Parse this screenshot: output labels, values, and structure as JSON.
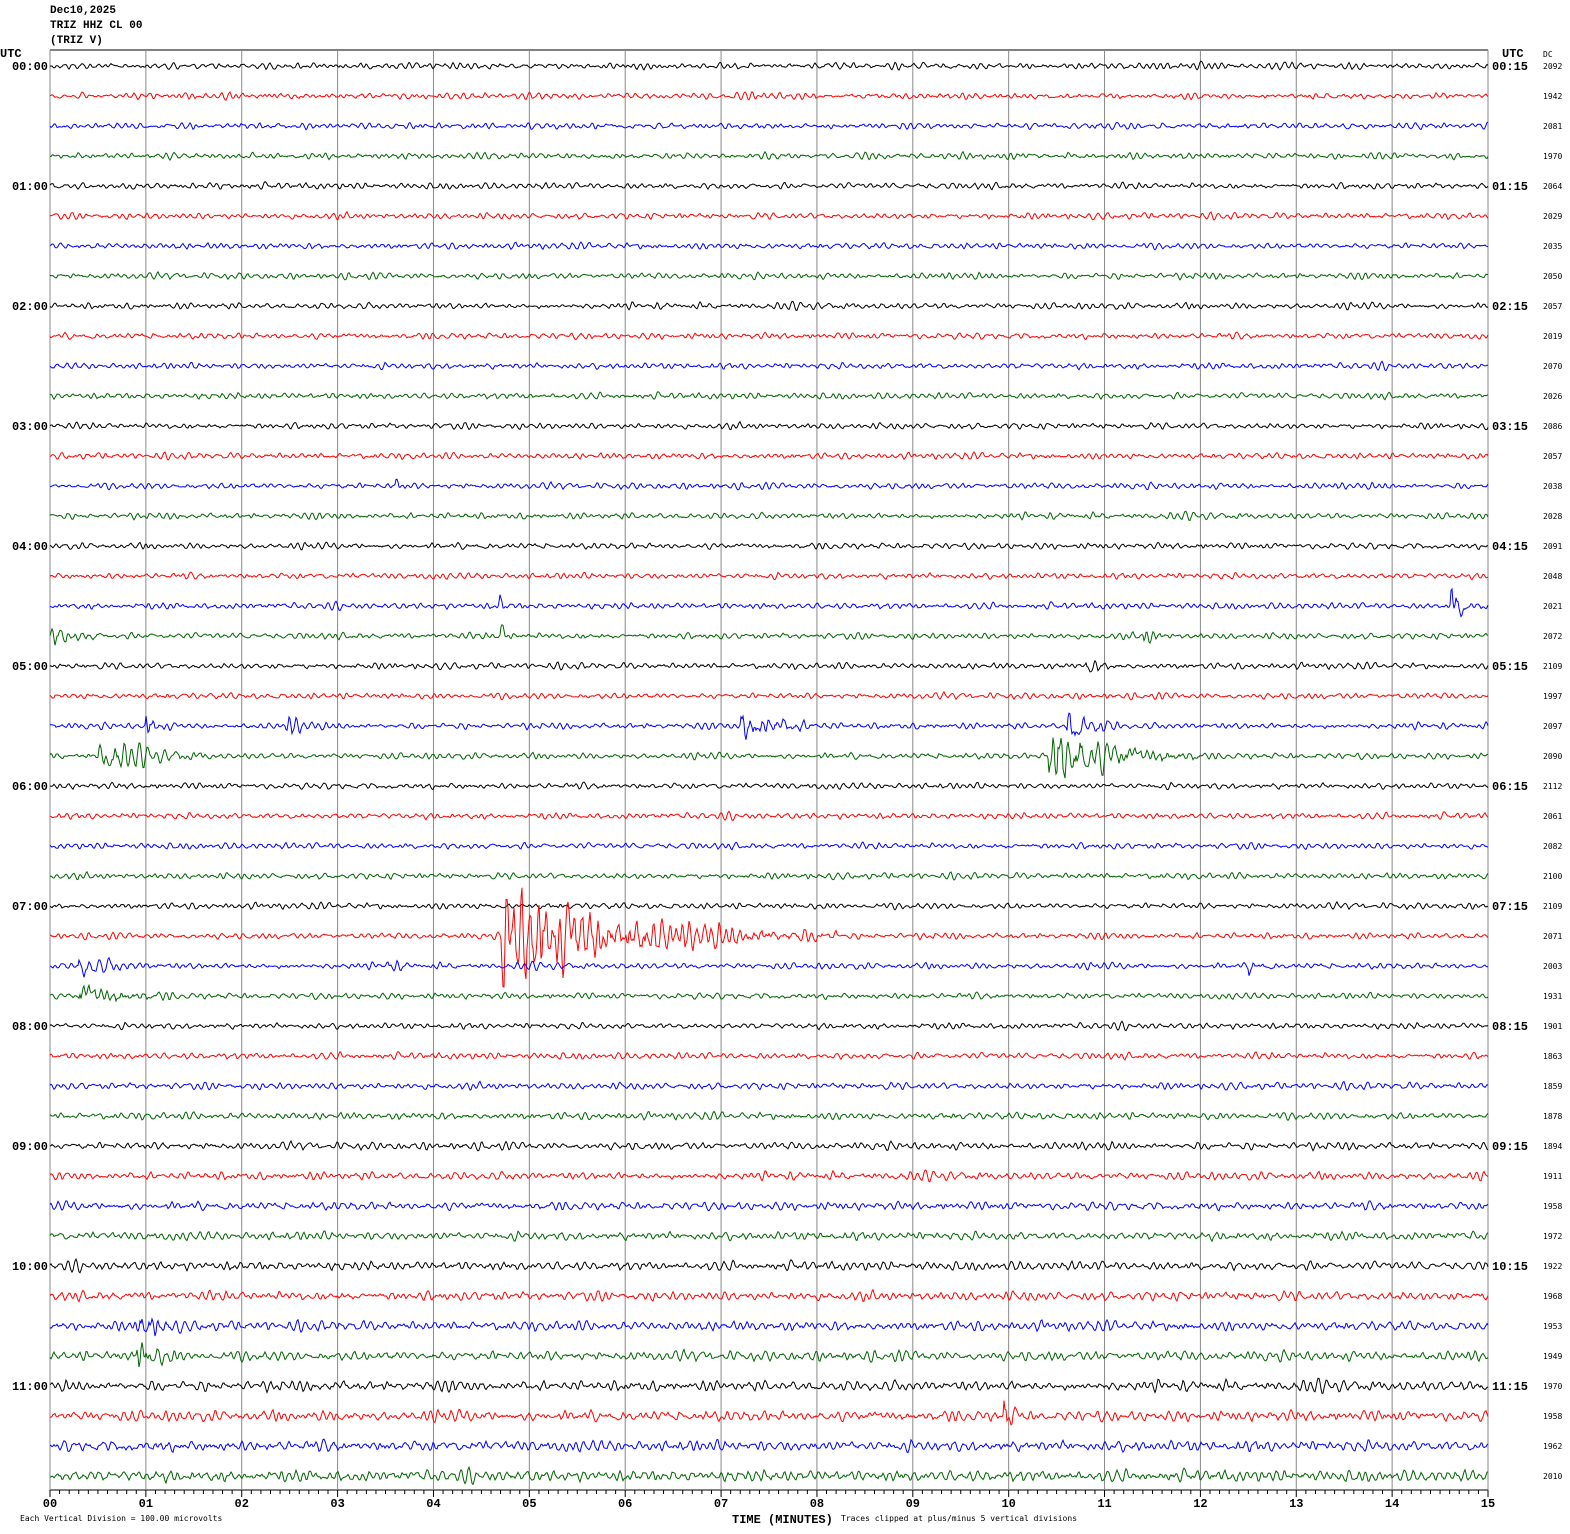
{
  "header": {
    "date": "Dec10,2025",
    "station": "TRIZ HHZ CL 00",
    "network": "(TRIZ V)"
  },
  "chart_data": {
    "type": "line",
    "subtype": "helicorder",
    "xlabel": "TIME (MINUTES)",
    "x_ticks": [
      "00",
      "01",
      "02",
      "03",
      "04",
      "05",
      "06",
      "07",
      "08",
      "09",
      "10",
      "11",
      "12",
      "13",
      "14",
      "15"
    ],
    "xlim": [
      0,
      15
    ],
    "grid": "vertical lines each minute",
    "left_axis_title": "UTC",
    "right_axis_title": "UTC",
    "dc_title": "DC",
    "left_labels": [
      "00:00",
      "01:00",
      "02:00",
      "03:00",
      "04:00",
      "05:00",
      "06:00",
      "07:00",
      "08:00",
      "09:00",
      "10:00",
      "11:00"
    ],
    "right_labels": [
      "00:15",
      "01:15",
      "02:15",
      "03:15",
      "04:15",
      "05:15",
      "06:15",
      "07:15",
      "08:15",
      "09:15",
      "10:15",
      "11:15"
    ],
    "trace_colors": [
      "#000000",
      "#ff0000",
      "#0000ff",
      "#006400"
    ],
    "dc_values": [
      "2092",
      "1942",
      "2081",
      "1970",
      "2064",
      "2029",
      "2035",
      "2050",
      "2057",
      "2019",
      "2070",
      "2026",
      "2086",
      "2057",
      "2038",
      "2028",
      "2091",
      "2048",
      "2021",
      "2072",
      "2109",
      "1997",
      "2097",
      "2090",
      "2112",
      "2061",
      "2082",
      "2100",
      "2109",
      "2071",
      "2003",
      "1931",
      "1901",
      "1863",
      "1859",
      "1878",
      "1894",
      "1911",
      "1958",
      "1972",
      "1922",
      "1968",
      "1953",
      "1949",
      "1970",
      "1958",
      "1962",
      "2010"
    ],
    "events": [
      {
        "trace": 14,
        "minute": 3.6,
        "duration": 0.15,
        "amplitude": 2
      },
      {
        "trace": 18,
        "minute": 4.68,
        "duration": 0.1,
        "amplitude": 4
      },
      {
        "trace": 18,
        "minute": 14.6,
        "duration": 0.4,
        "amplitude": 6
      },
      {
        "trace": 19,
        "minute": 0.0,
        "duration": 0.6,
        "amplitude": 3
      },
      {
        "trace": 19,
        "minute": 4.7,
        "duration": 0.15,
        "amplitude": 4
      },
      {
        "trace": 19,
        "minute": 11.4,
        "duration": 0.3,
        "amplitude": 3
      },
      {
        "trace": 20,
        "minute": 10.8,
        "duration": 0.4,
        "amplitude": 1.5
      },
      {
        "trace": 22,
        "minute": 1.0,
        "duration": 0.3,
        "amplitude": 3
      },
      {
        "trace": 22,
        "minute": 2.45,
        "duration": 0.4,
        "amplitude": 3
      },
      {
        "trace": 22,
        "minute": 7.2,
        "duration": 1.0,
        "amplitude": 5
      },
      {
        "trace": 22,
        "minute": 10.6,
        "duration": 0.6,
        "amplitude": 6
      },
      {
        "trace": 23,
        "minute": 0.5,
        "duration": 1.2,
        "amplitude": 4
      },
      {
        "trace": 23,
        "minute": 10.4,
        "duration": 1.6,
        "amplitude": 11
      },
      {
        "trace": 29,
        "minute": 4.7,
        "duration": 3.5,
        "amplitude": 15
      },
      {
        "trace": 30,
        "minute": 0.3,
        "duration": 0.8,
        "amplitude": 3
      },
      {
        "trace": 30,
        "minute": 3.5,
        "duration": 0.25,
        "amplitude": 2
      },
      {
        "trace": 30,
        "minute": 12.5,
        "duration": 0.3,
        "amplitude": 1.5
      },
      {
        "trace": 31,
        "minute": 0.3,
        "duration": 1.0,
        "amplitude": 4
      },
      {
        "trace": 42,
        "minute": 0.9,
        "duration": 0.5,
        "amplitude": 5
      },
      {
        "trace": 43,
        "minute": 0.9,
        "duration": 0.5,
        "amplitude": 5
      },
      {
        "trace": 45,
        "minute": 9.95,
        "duration": 0.2,
        "amplitude": 6
      }
    ]
  },
  "footer": {
    "scale_note": "Each Vertical Division =  100.00 microvolts",
    "clip_note": "Traces clipped at plus/minus 5 vertical divisions"
  }
}
